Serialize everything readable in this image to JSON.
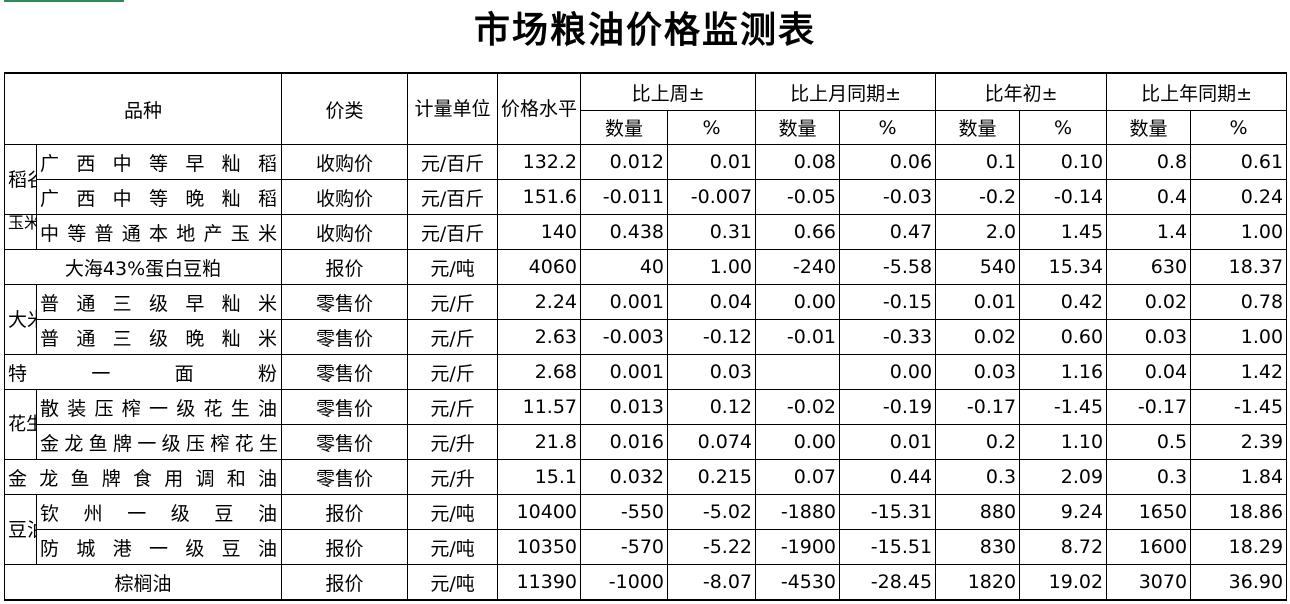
{
  "title": "市场粮油价格监测表",
  "header": {
    "variety": "品种",
    "price_type": "价类",
    "unit": "计量单位",
    "price_level": "价格水平",
    "groups": [
      "比上周±",
      "比上月同期±",
      "比年初±",
      "比上年同期±"
    ],
    "qty": "数量",
    "pct": "%"
  },
  "rows": [
    {
      "cat": "稻谷",
      "name": "广 西 中 等 早 籼 稻",
      "ptype": "收购价",
      "unit": "元/百斤",
      "price": "132.2",
      "vals": [
        "0.012",
        "0.01",
        "0.08",
        "0.06",
        "0.1",
        "0.10",
        "0.8",
        "0.61"
      ]
    },
    {
      "cat": "",
      "name": "广 西 中 等 晚 籼 稻",
      "ptype": "收购价",
      "unit": "元/百斤",
      "price": "151.6",
      "vals": [
        "-0.011",
        "-0.007",
        "-0.05",
        "-0.03",
        "-0.2",
        "-0.14",
        "0.4",
        "0.24"
      ]
    },
    {
      "cat": "玉米",
      "name": "中 等 普 通 本 地 产 玉 米",
      "ptype": "收购价",
      "unit": "元/百斤",
      "price": "140",
      "vals": [
        "0.438",
        "0.31",
        "0.66",
        "0.47",
        "2.0",
        "1.45",
        "1.4",
        "1.00"
      ]
    },
    {
      "cat": "",
      "name": "大海43%蛋白豆粕",
      "ptype": "报价",
      "unit": "元/吨",
      "price": "4060",
      "vals": [
        "40",
        "1.00",
        "-240",
        "-5.58",
        "540",
        "15.34",
        "630",
        "18.37"
      ]
    },
    {
      "cat": "大米",
      "name": "普 通 三 级 早 籼 米",
      "ptype": "零售价",
      "unit": "元/斤",
      "price": "2.24",
      "vals": [
        "0.001",
        "0.04",
        "0.00",
        "-0.15",
        "0.01",
        "0.42",
        "0.02",
        "0.78"
      ]
    },
    {
      "cat": "",
      "name": "普 通 三 级 晚 籼 米",
      "ptype": "零售价",
      "unit": "元/斤",
      "price": "2.63",
      "vals": [
        "-0.003",
        "-0.12",
        "-0.01",
        "-0.33",
        "0.02",
        "0.60",
        "0.03",
        "1.00"
      ]
    },
    {
      "cat": "",
      "name": "特 一 面 粉",
      "ptype": "零售价",
      "unit": "元/斤",
      "price": "2.68",
      "vals": [
        "0.001",
        "0.03",
        "",
        "0.00",
        "0.03",
        "1.16",
        "0.04",
        "1.42"
      ]
    },
    {
      "cat": "花生油",
      "name": "散 装 压 榨 一 级 花 生 油",
      "ptype": "零售价",
      "unit": "元/斤",
      "price": "11.57",
      "vals": [
        "0.013",
        "0.12",
        "-0.02",
        "-0.19",
        "-0.17",
        "-1.45",
        "-0.17",
        "-1.45"
      ]
    },
    {
      "cat": "",
      "name": "金龙鱼牌一级压榨花生",
      "ptype": "零售价",
      "unit": "元/升",
      "price": "21.8",
      "vals": [
        "0.016",
        "0.074",
        "0.00",
        "0.01",
        "0.2",
        "1.10",
        "0.5",
        "2.39"
      ]
    },
    {
      "cat": "",
      "name": "金 龙 鱼 牌 食 用 调 和 油",
      "ptype": "零售价",
      "unit": "元/升",
      "price": "15.1",
      "vals": [
        "0.032",
        "0.215",
        "0.07",
        "0.44",
        "0.3",
        "2.09",
        "0.3",
        "1.84"
      ]
    },
    {
      "cat": "豆油",
      "name": "钦 州 一 级 豆 油",
      "ptype": "报价",
      "unit": "元/吨",
      "price": "10400",
      "vals": [
        "-550",
        "-5.02",
        "-1880",
        "-15.31",
        "880",
        "9.24",
        "1650",
        "18.86"
      ]
    },
    {
      "cat": "",
      "name": "防 城 港 一 级 豆 油",
      "ptype": "报价",
      "unit": "元/吨",
      "price": "10350",
      "vals": [
        "-570",
        "-5.22",
        "-1900",
        "-15.51",
        "830",
        "8.72",
        "1600",
        "18.29"
      ]
    },
    {
      "cat": "",
      "name": "棕榈油",
      "ptype": "报价",
      "unit": "元/吨",
      "price": "11390",
      "vals": [
        "-1000",
        "-8.07",
        "-4530",
        "-28.45",
        "1820",
        "19.02",
        "3070",
        "36.90"
      ]
    }
  ]
}
